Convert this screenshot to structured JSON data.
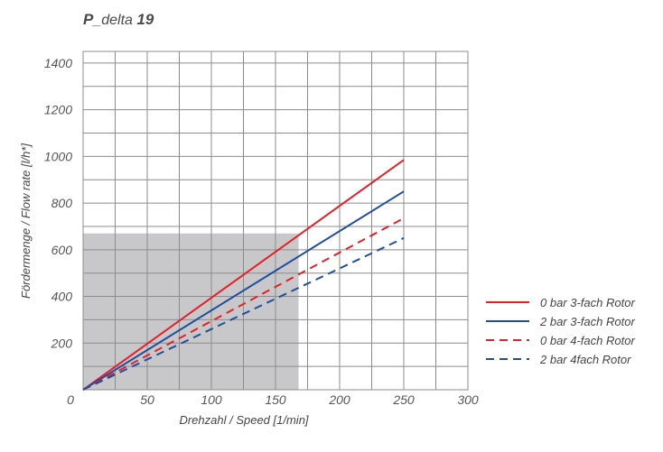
{
  "title_prefix": "P",
  "title_mid": "_delta ",
  "title_num": "19",
  "chart_data": {
    "type": "line",
    "xlabel": "Drehzahl / Speed [1/min]",
    "ylabel": "Fördermenge / Flow rate [l/h*]",
    "xlim": [
      0,
      300
    ],
    "ylim": [
      0,
      1450
    ],
    "xticks": [
      50,
      100,
      150,
      200,
      250,
      300
    ],
    "yticks": [
      200,
      400,
      600,
      800,
      1000,
      1200,
      1400
    ],
    "origin_label": "0",
    "grid": true,
    "shaded_region": {
      "x": [
        0,
        168
      ],
      "y": [
        0,
        670
      ]
    },
    "legend_position": "right",
    "series": [
      {
        "name": "0 bar 3-fach Rotor",
        "color": "#e3202a",
        "style": "solid",
        "x": [
          0,
          250
        ],
        "y": [
          0,
          985
        ]
      },
      {
        "name": "2 bar 3-fach Rotor",
        "color": "#1f4e9c",
        "style": "solid",
        "x": [
          0,
          250
        ],
        "y": [
          0,
          850
        ]
      },
      {
        "name": "0 bar 4-fach Rotor",
        "color": "#e3202a",
        "style": "dashed",
        "x": [
          0,
          250
        ],
        "y": [
          0,
          735
        ]
      },
      {
        "name": "2 bar 4fach Rotor",
        "color": "#1f4e9c",
        "style": "dashed",
        "x": [
          0,
          250
        ],
        "y": [
          0,
          650
        ]
      }
    ]
  }
}
